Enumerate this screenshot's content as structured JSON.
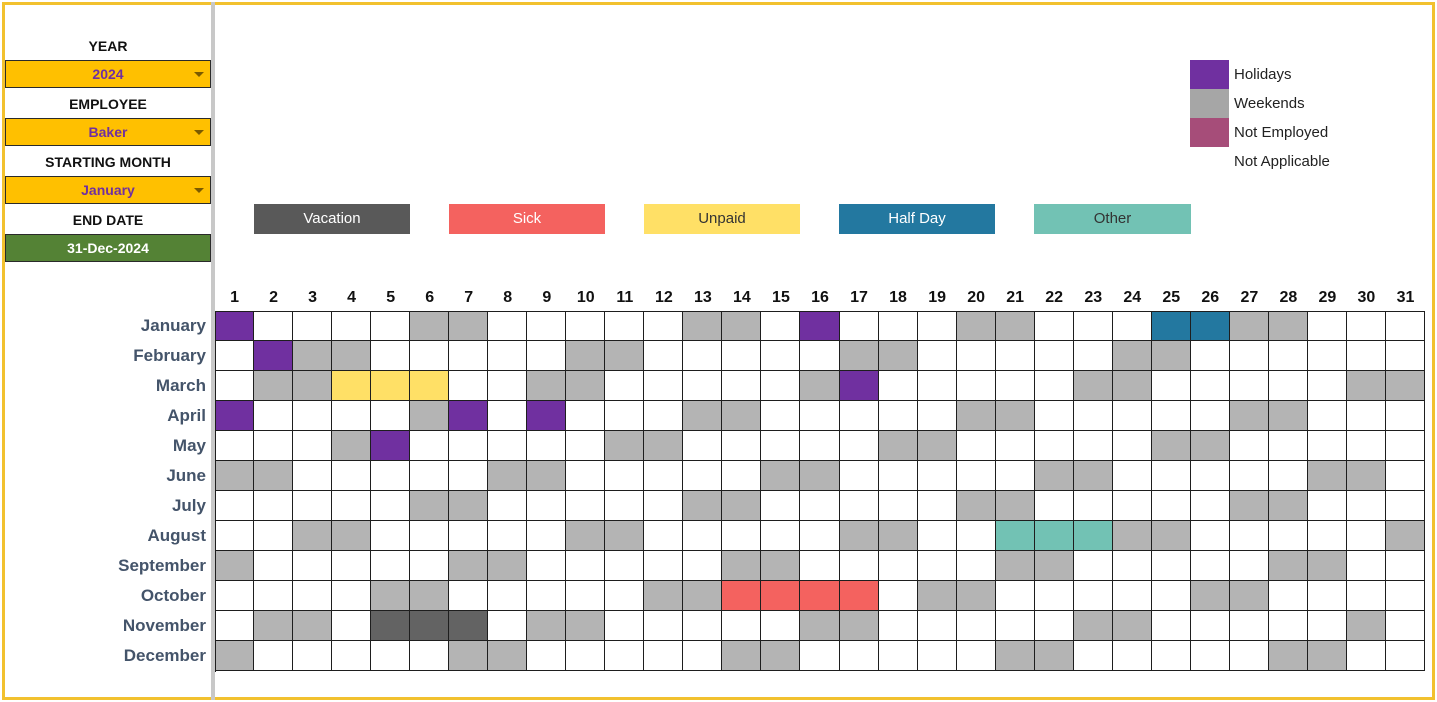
{
  "sidebar": {
    "year_label": "YEAR",
    "year_value": "2024",
    "employee_label": "EMPLOYEE",
    "employee_value": "Baker",
    "starting_month_label": "STARTING MONTH",
    "starting_month_value": "January",
    "end_date_label": "END DATE",
    "end_date_value": "31-Dec-2024"
  },
  "legend": [
    {
      "label": "Holidays",
      "color": "#7030a0"
    },
    {
      "label": "Weekends",
      "color": "#a6a6a6"
    },
    {
      "label": "Not Employed",
      "color": "#a64d79"
    },
    {
      "label": "Not Applicable",
      "color": "#ffffff"
    }
  ],
  "categories": [
    {
      "label": "Vacation",
      "color": "#595959",
      "text_color": "#ffffff"
    },
    {
      "label": "Sick",
      "color": "#f4625f",
      "text_color": "#ffffff"
    },
    {
      "label": "Unpaid",
      "color": "#ffe066",
      "text_color": "#333333"
    },
    {
      "label": "Half Day",
      "color": "#2378a0",
      "text_color": "#ffffff"
    },
    {
      "label": "Other",
      "color": "#72c2b4",
      "text_color": "#333333"
    }
  ],
  "status_colors": {
    "weekend": "#b4b4b4",
    "holiday": "#7030a0",
    "vacation": "#636363",
    "sick": "#f4625f",
    "unpaid": "#ffe066",
    "half_day": "#2378a0",
    "other": "#72c2b4"
  },
  "days": [
    "1",
    "2",
    "3",
    "4",
    "5",
    "6",
    "7",
    "8",
    "9",
    "10",
    "11",
    "12",
    "13",
    "14",
    "15",
    "16",
    "17",
    "18",
    "19",
    "20",
    "21",
    "22",
    "23",
    "24",
    "25",
    "26",
    "27",
    "28",
    "29",
    "30",
    "31"
  ],
  "months": [
    {
      "name": "January",
      "weekend_days": [
        6,
        7,
        13,
        14,
        20,
        21,
        27,
        28
      ],
      "holidays": [
        1,
        16
      ],
      "vacation": [],
      "sick": [],
      "unpaid": [],
      "half_day": [
        25,
        26
      ],
      "other": []
    },
    {
      "name": "February",
      "weekend_days": [
        3,
        4,
        10,
        11,
        17,
        18,
        24,
        25
      ],
      "holidays": [
        2
      ],
      "vacation": [],
      "sick": [],
      "unpaid": [],
      "half_day": [],
      "other": []
    },
    {
      "name": "March",
      "weekend_days": [
        2,
        3,
        9,
        10,
        16,
        23,
        24,
        30,
        31
      ],
      "holidays": [
        17
      ],
      "vacation": [],
      "sick": [],
      "unpaid": [
        4,
        5,
        6
      ],
      "half_day": [],
      "other": []
    },
    {
      "name": "April",
      "weekend_days": [
        6,
        13,
        14,
        20,
        21,
        27,
        28
      ],
      "holidays": [
        1,
        7,
        9
      ],
      "vacation": [],
      "sick": [],
      "unpaid": [],
      "half_day": [],
      "other": []
    },
    {
      "name": "May",
      "weekend_days": [
        4,
        11,
        12,
        18,
        19,
        25,
        26
      ],
      "holidays": [
        5
      ],
      "vacation": [],
      "sick": [],
      "unpaid": [],
      "half_day": [],
      "other": []
    },
    {
      "name": "June",
      "weekend_days": [
        1,
        2,
        8,
        9,
        15,
        16,
        22,
        23,
        29,
        30
      ],
      "holidays": [],
      "vacation": [],
      "sick": [],
      "unpaid": [],
      "half_day": [],
      "other": []
    },
    {
      "name": "July",
      "weekend_days": [
        6,
        7,
        13,
        14,
        20,
        21,
        27,
        28
      ],
      "holidays": [],
      "vacation": [],
      "sick": [],
      "unpaid": [],
      "half_day": [],
      "other": []
    },
    {
      "name": "August",
      "weekend_days": [
        3,
        4,
        10,
        11,
        17,
        18,
        24,
        25,
        31
      ],
      "holidays": [],
      "vacation": [],
      "sick": [],
      "unpaid": [],
      "half_day": [],
      "other": [
        21,
        22,
        23
      ]
    },
    {
      "name": "September",
      "weekend_days": [
        1,
        7,
        8,
        14,
        15,
        21,
        22,
        28,
        29
      ],
      "holidays": [],
      "vacation": [],
      "sick": [],
      "unpaid": [],
      "half_day": [],
      "other": []
    },
    {
      "name": "October",
      "weekend_days": [
        5,
        6,
        12,
        13,
        19,
        20,
        26,
        27
      ],
      "holidays": [],
      "vacation": [],
      "sick": [
        14,
        15,
        16,
        17
      ],
      "unpaid": [],
      "half_day": [],
      "other": []
    },
    {
      "name": "November",
      "weekend_days": [
        2,
        3,
        9,
        10,
        16,
        17,
        23,
        24,
        30
      ],
      "holidays": [],
      "vacation": [
        5,
        6,
        7
      ],
      "sick": [],
      "unpaid": [],
      "half_day": [],
      "other": []
    },
    {
      "name": "December",
      "weekend_days": [
        1,
        7,
        8,
        14,
        15,
        21,
        22,
        28,
        29
      ],
      "holidays": [],
      "vacation": [],
      "sick": [],
      "unpaid": [],
      "half_day": [],
      "other": []
    }
  ]
}
